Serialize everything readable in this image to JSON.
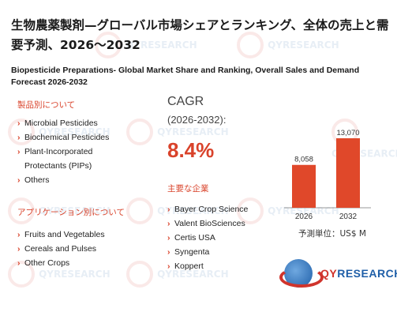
{
  "title_jp": "生物農薬製剤—グローバル市場シェアとランキング、全体の売上と需要予測、2026～2032",
  "title_en": "Biopesticide Preparations- Global Market Share and Ranking, Overall Sales and Demand Forecast 2026-2032",
  "product_section": {
    "heading": "製品別について",
    "items": [
      "Microbial Pesticides",
      "Biochemical Pesticides",
      "Plant-Incorporated",
      "Protectants (PIPs)",
      "Others"
    ]
  },
  "application_section": {
    "heading": "アプリケーション別について",
    "items": [
      "Fruits and Vegetables",
      "Cereals and Pulses",
      "Other Crops"
    ]
  },
  "cagr": {
    "label": "CAGR",
    "period": "(2026-2032):",
    "value": "8.4%"
  },
  "companies_section": {
    "heading": "主要な企業",
    "items": [
      "Bayer Crop Science",
      "Valent BioSciences",
      "Certis USA",
      "Syngenta",
      "Koppert"
    ]
  },
  "chart_data": {
    "type": "bar",
    "categories": [
      "2026",
      "2032"
    ],
    "values": [
      8058,
      13070
    ],
    "value_labels": [
      "8,058",
      "13,070"
    ],
    "color": "#e0482a"
  },
  "unit_label": "予測単位：US$ M",
  "logo": {
    "brand_q": "QY",
    "brand_rest": "RESEARCH"
  },
  "watermark": "QYRESEARCH"
}
